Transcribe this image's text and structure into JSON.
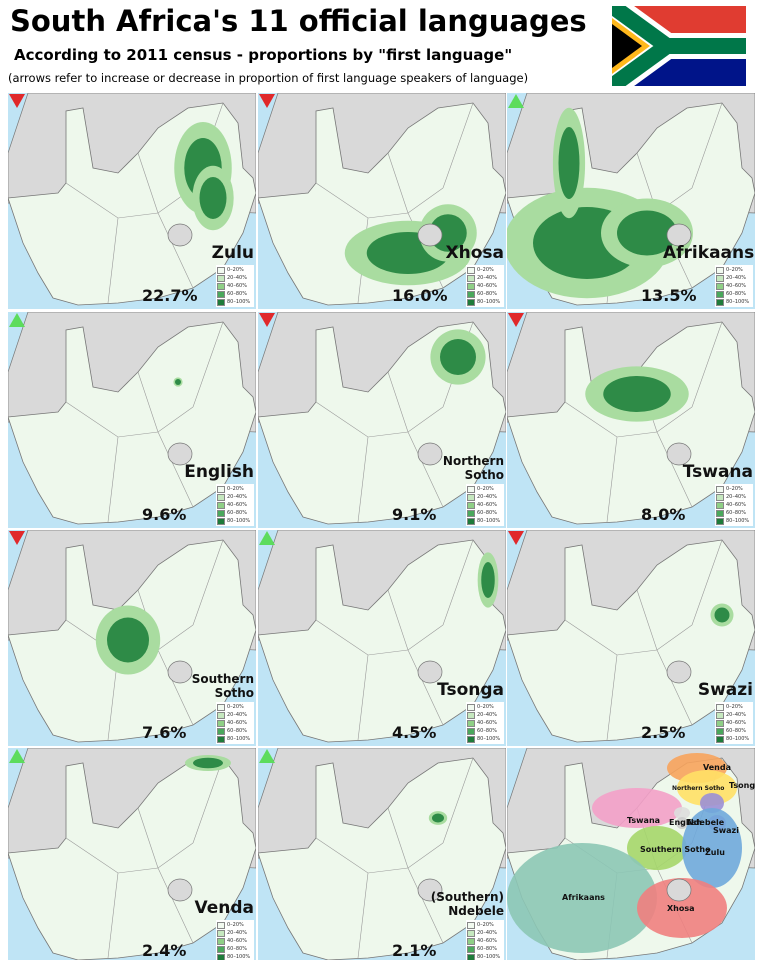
{
  "header": {
    "title": "South Africa's 11 official languages",
    "subtitle": "According to 2011 census - proportions by \"first language\"",
    "note": "(arrows refer to increase or decrease in proportion of first language speakers of language)"
  },
  "legend": [
    "0–20%",
    "20–40%",
    "40–60%",
    "60–80%",
    "80–100%"
  ],
  "panels": [
    {
      "name": "Zulu",
      "share": "22.7%",
      "trend": "down"
    },
    {
      "name": "Xhosa",
      "share": "16.0%",
      "trend": "down"
    },
    {
      "name": "Afrikaans",
      "share": "13.5%",
      "trend": "up"
    },
    {
      "name": "English",
      "share": "9.6%",
      "trend": "up"
    },
    {
      "name": "Northern Sotho",
      "share": "9.1%",
      "trend": "down"
    },
    {
      "name": "Tswana",
      "share": "8.0%",
      "trend": "down"
    },
    {
      "name": "Southern Sotho",
      "share": "7.6%",
      "trend": "down"
    },
    {
      "name": "Tsonga",
      "share": "4.5%",
      "trend": "up"
    },
    {
      "name": "Swazi",
      "share": "2.5%",
      "trend": "down"
    },
    {
      "name": "Venda",
      "share": "2.4%",
      "trend": "up"
    },
    {
      "name": "(Southern) Ndebele",
      "share": "2.1%",
      "trend": "up"
    }
  ],
  "summary_labels": [
    "Venda",
    "Northern Sotho",
    "Tsonga",
    "Tswana",
    "English",
    "Ndebele",
    "Swazi",
    "Southern Sotho",
    "Zulu",
    "Afrikaans",
    "Xhosa"
  ]
}
